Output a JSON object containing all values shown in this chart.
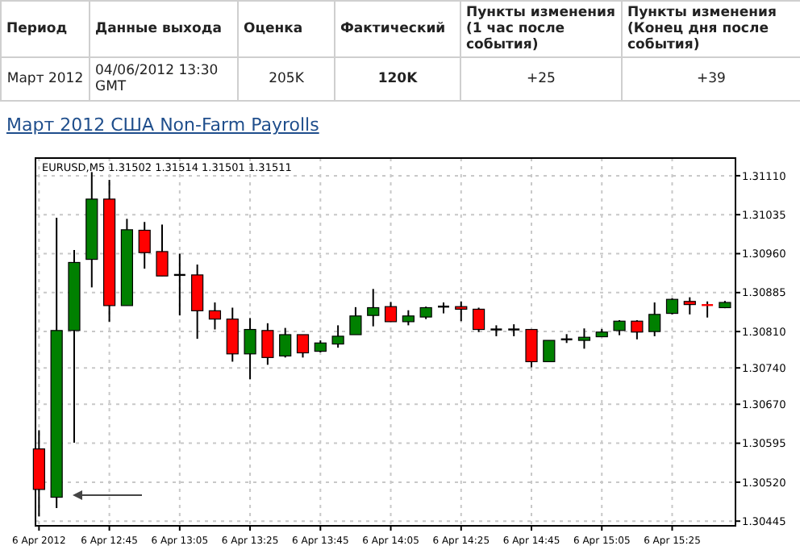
{
  "chart_data": {
    "type": "candlestick",
    "title": "Март 2012 США Non-Farm Payrolls",
    "annotations": [
      "Период",
      "Данные выхода",
      "Оценка",
      "Фактический",
      "Пункты изменения (1 час после события)",
      "Пункты изменения (Конец дня после события)",
      "Март 2012",
      "04/06/2012 13:30 GMT",
      "205K",
      "120K",
      "+25",
      "+39",
      "EURUSD,M5  1.31502 1.31514 1.31501 1.31511"
    ],
    "x": [
      "2012-04-06T12:25",
      "2012-04-06T12:30",
      "2012-04-06T12:35",
      "2012-04-06T12:40",
      "2012-04-06T12:45",
      "2012-04-06T12:50",
      "2012-04-06T12:55",
      "2012-04-06T13:00",
      "2012-04-06T13:05",
      "2012-04-06T13:10",
      "2012-04-06T13:15",
      "2012-04-06T13:20",
      "2012-04-06T13:25",
      "2012-04-06T13:30",
      "2012-04-06T13:35",
      "2012-04-06T13:40",
      "2012-04-06T13:45",
      "2012-04-06T13:50",
      "2012-04-06T13:55",
      "2012-04-06T14:00",
      "2012-04-06T14:05",
      "2012-04-06T14:10",
      "2012-04-06T14:15",
      "2012-04-06T14:20",
      "2012-04-06T14:25",
      "2012-04-06T14:30",
      "2012-04-06T14:35",
      "2012-04-06T14:40",
      "2012-04-06T14:45",
      "2012-04-06T14:50",
      "2012-04-06T14:55",
      "2012-04-06T15:00",
      "2012-04-06T15:05",
      "2012-04-06T15:10",
      "2012-04-06T15:15",
      "2012-04-06T15:20",
      "2012-04-06T15:25",
      "2012-04-06T15:30",
      "2012-04-06T15:35",
      "2012-04-06T15:40"
    ],
    "ohlc": [
      [
        1.30584,
        1.3062,
        1.30454,
        1.30506
      ],
      [
        1.30491,
        1.31029,
        1.3047,
        1.30812
      ],
      [
        1.30812,
        1.30967,
        1.30596,
        1.30943
      ],
      [
        1.30949,
        1.31117,
        1.30895,
        1.31065
      ],
      [
        1.31065,
        1.31102,
        1.30829,
        1.3086
      ],
      [
        1.3086,
        1.31027,
        1.3086,
        1.31006
      ],
      [
        1.31005,
        1.31021,
        1.30931,
        1.30962
      ],
      [
        1.30964,
        1.31016,
        1.30917,
        1.30917
      ],
      [
        1.30919,
        1.3096,
        1.30841,
        1.30919
      ],
      [
        1.30919,
        1.30939,
        1.30796,
        1.3085
      ],
      [
        1.3085,
        1.30866,
        1.30814,
        1.30834
      ],
      [
        1.30834,
        1.30856,
        1.30752,
        1.30767
      ],
      [
        1.30767,
        1.30836,
        1.30718,
        1.30814
      ],
      [
        1.30812,
        1.30826,
        1.30746,
        1.3076
      ],
      [
        1.30763,
        1.30817,
        1.3076,
        1.30804
      ],
      [
        1.30804,
        1.30804,
        1.3076,
        1.30769
      ],
      [
        1.30772,
        1.30793,
        1.3077,
        1.30788
      ],
      [
        1.30786,
        1.30822,
        1.30779,
        1.30801
      ],
      [
        1.30804,
        1.30857,
        1.30804,
        1.3084
      ],
      [
        1.30841,
        1.30892,
        1.3082,
        1.30856
      ],
      [
        1.30858,
        1.30867,
        1.30829,
        1.30829
      ],
      [
        1.30829,
        1.30851,
        1.30822,
        1.3084
      ],
      [
        1.30838,
        1.30858,
        1.30834,
        1.30856
      ],
      [
        1.30858,
        1.30866,
        1.30845,
        1.30858
      ],
      [
        1.30858,
        1.30868,
        1.3083,
        1.30853
      ],
      [
        1.30853,
        1.30856,
        1.30809,
        1.30814
      ],
      [
        1.30814,
        1.30822,
        1.30801,
        1.30814
      ],
      [
        1.30814,
        1.30824,
        1.30801,
        1.30814
      ],
      [
        1.30814,
        1.30814,
        1.30741,
        1.30752
      ],
      [
        1.30752,
        1.30793,
        1.30752,
        1.30793
      ],
      [
        1.30795,
        1.30805,
        1.30788,
        1.30795
      ],
      [
        1.30793,
        1.30816,
        1.30777,
        1.30799
      ],
      [
        1.308,
        1.30815,
        1.308,
        1.30809
      ],
      [
        1.30812,
        1.30832,
        1.30803,
        1.3083
      ],
      [
        1.3083,
        1.30832,
        1.30795,
        1.30809
      ],
      [
        1.3081,
        1.30866,
        1.30801,
        1.30843
      ],
      [
        1.30845,
        1.30874,
        1.30843,
        1.30872
      ],
      [
        1.30868,
        1.30876,
        1.30843,
        1.30862
      ],
      [
        1.30861,
        1.30868,
        1.30837,
        1.30858
      ],
      [
        1.30856,
        1.30869,
        1.30855,
        1.30866
      ]
    ],
    "colors": [
      "#ff0000",
      "#008000",
      "#008000",
      "#008000",
      "#ff0000",
      "#008000",
      "#ff0000",
      "#ff0000",
      "#000000",
      "#ff0000",
      "#ff0000",
      "#ff0000",
      "#008000",
      "#ff0000",
      "#008000",
      "#ff0000",
      "#008000",
      "#008000",
      "#008000",
      "#008000",
      "#ff0000",
      "#008000",
      "#008000",
      "#000000",
      "#ff0000",
      "#ff0000",
      "#000000",
      "#000000",
      "#ff0000",
      "#008000",
      "#000000",
      "#008000",
      "#008000",
      "#008000",
      "#ff0000",
      "#008000",
      "#008000",
      "#ff0000",
      "#ff0000",
      "#008000"
    ],
    "xlim": [
      "2012-04-06T12:24",
      "2012-04-06T15:43"
    ],
    "xticks": [
      {
        "value": "2012-04-06T12:25",
        "label": "6 Apr 2012"
      },
      {
        "value": "2012-04-06T12:45",
        "label": "6 Apr 12:45"
      },
      {
        "value": "2012-04-06T13:05",
        "label": "6 Apr 13:05"
      },
      {
        "value": "2012-04-06T13:25",
        "label": "6 Apr 13:25"
      },
      {
        "value": "2012-04-06T13:45",
        "label": "6 Apr 13:45"
      },
      {
        "value": "2012-04-06T14:05",
        "label": "6 Apr 14:05"
      },
      {
        "value": "2012-04-06T14:25",
        "label": "6 Apr 14:25"
      },
      {
        "value": "2012-04-06T14:45",
        "label": "6 Apr 14:45"
      },
      {
        "value": "2012-04-06T15:05",
        "label": "6 Apr 15:05"
      },
      {
        "value": "2012-04-06T15:25",
        "label": "6 Apr 15:25"
      }
    ],
    "ylim": [
      1.30436,
      1.31144
    ],
    "yticks": [
      1.30445,
      {
        "value": 1.3052,
        "label": "1.30520"
      },
      1.30595,
      {
        "value": 1.3067,
        "label": "1.30670"
      },
      {
        "value": 1.3074,
        "label": "1.30740"
      },
      {
        "value": 1.3081,
        "label": "1.30810"
      },
      1.30885,
      {
        "value": 1.3096,
        "label": "1.30960"
      },
      1.31035,
      {
        "value": 1.3111,
        "label": "1.31110"
      }
    ],
    "grid": true
  }
}
